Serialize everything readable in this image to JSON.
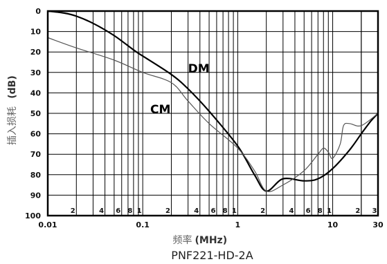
{
  "chart_data": {
    "type": "line",
    "title": "PNF221-HD-2A",
    "xlabel_cn": "频率",
    "xlabel_unit": "(MHz)",
    "ylabel_cn": "插入损耗",
    "ylabel_unit": "(dB)",
    "x_scale": "log",
    "xlim": [
      0.01,
      30
    ],
    "ylim": [
      0,
      100
    ],
    "y_inverted": true,
    "grid": true,
    "x_major_ticks": [
      {
        "v": 0.01,
        "label": "0.01"
      },
      {
        "v": 0.1,
        "label": "0.1"
      },
      {
        "v": 1,
        "label": "1"
      },
      {
        "v": 10,
        "label": "10"
      },
      {
        "v": 30,
        "label": "30"
      }
    ],
    "x_minor_ticks": [
      {
        "v": 0.02,
        "label": "2"
      },
      {
        "v": 0.04,
        "label": "4"
      },
      {
        "v": 0.06,
        "label": "6"
      },
      {
        "v": 0.08,
        "label": "8"
      },
      {
        "v": 0.1,
        "label": "1"
      },
      {
        "v": 0.2,
        "label": "2"
      },
      {
        "v": 0.4,
        "label": "4"
      },
      {
        "v": 0.6,
        "label": "6"
      },
      {
        "v": 0.8,
        "label": "8"
      },
      {
        "v": 1,
        "label": "1"
      },
      {
        "v": 2,
        "label": "2"
      },
      {
        "v": 4,
        "label": "4"
      },
      {
        "v": 6,
        "label": "6"
      },
      {
        "v": 8,
        "label": "8"
      },
      {
        "v": 10,
        "label": "1"
      },
      {
        "v": 20,
        "label": "2"
      },
      {
        "v": 30,
        "label": "3"
      }
    ],
    "y_ticks": [
      0,
      10,
      20,
      30,
      40,
      50,
      60,
      70,
      80,
      90,
      100
    ],
    "series": [
      {
        "name": "DM",
        "color": "#000000",
        "x": [
          0.01,
          0.015,
          0.02,
          0.03,
          0.05,
          0.08,
          0.1,
          0.2,
          0.3,
          0.5,
          1,
          1.5,
          2,
          3,
          5,
          7,
          10,
          15,
          20,
          25,
          30
        ],
        "y": [
          0,
          1,
          2.5,
          6,
          12,
          19,
          22,
          31,
          38,
          49,
          66,
          80,
          88,
          82,
          83,
          82,
          77,
          68,
          60,
          54,
          50
        ]
      },
      {
        "name": "CM",
        "color": "#555555",
        "x": [
          0.01,
          0.02,
          0.05,
          0.1,
          0.2,
          0.3,
          0.5,
          1,
          1.5,
          2,
          3,
          5,
          7,
          8,
          9,
          10,
          12,
          13,
          15,
          20,
          30
        ],
        "y": [
          13,
          18,
          24,
          30,
          35,
          44,
          55,
          67,
          78,
          88,
          85,
          78,
          70,
          67,
          69,
          72,
          65,
          56,
          55,
          56,
          50
        ]
      }
    ],
    "annotations": [
      {
        "text": "DM",
        "x": 0.3,
        "y": 28
      },
      {
        "text": "CM",
        "x": 0.12,
        "y": 48
      }
    ]
  }
}
